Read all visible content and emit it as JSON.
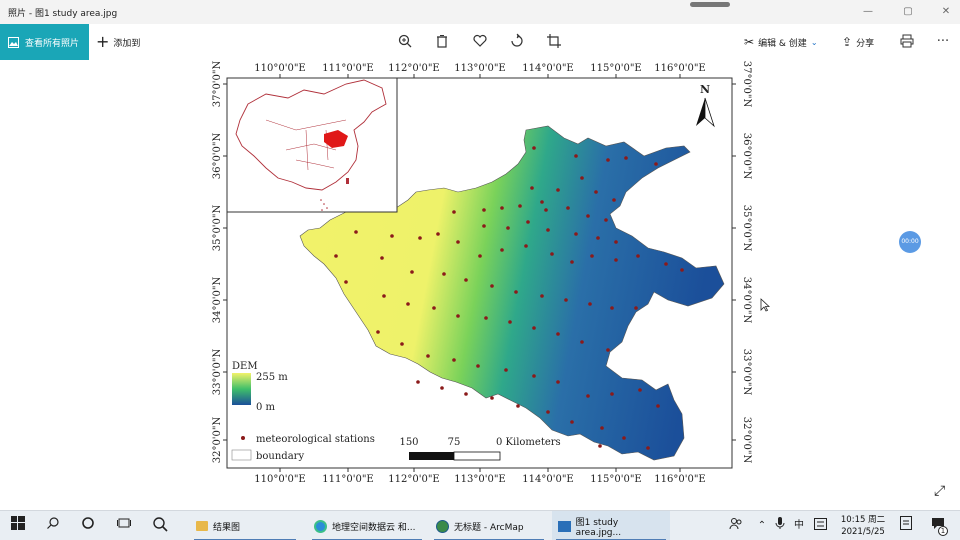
{
  "window": {
    "title": "照片 - 图1 study area.jpg"
  },
  "toolbar": {
    "all_photos_label": "查看所有照片",
    "add_label": "添加到",
    "edit_label": "编辑 & 创建",
    "share_label": "分享",
    "more_label": "···"
  },
  "map": {
    "lon_labels": [
      "110°0'0\"E",
      "111°0'0\"E",
      "112°0'0\"E",
      "113°0'0\"E",
      "114°0'0\"E",
      "115°0'0\"E",
      "116°0'0\"E"
    ],
    "lat_labels": [
      "37°0'0\"N",
      "36°0'0\"N",
      "35°0'0\"N",
      "34°0'0\"N",
      "33°0'0\"N",
      "32°0'0\"N"
    ],
    "north_label": "N",
    "dem_title": "DEM",
    "dem_high": "255 m",
    "dem_low": "0 m",
    "legend_stations": "meteorological stations",
    "legend_boundary": "boundary",
    "scale_labels": [
      "150",
      "75",
      "0 Kilometers"
    ],
    "colors": {
      "dem_high": "#f2f26a",
      "dem_mid": "#3fbf6a",
      "dem_low": "#1b4f9a",
      "station": "#8b1a1a",
      "inset": "#b0303a"
    }
  },
  "overlay": {
    "side_badge": "00:00"
  },
  "taskbar": {
    "apps": [
      {
        "label": "结果图"
      },
      {
        "label": "地理空间数据云 和..."
      },
      {
        "label": "无标题 - ArcMap"
      },
      {
        "label": "图1 study area.jpg..."
      }
    ],
    "ime": "中",
    "clock_time": "10:15 周二",
    "clock_date": "2021/5/25",
    "notification_count": "1"
  }
}
